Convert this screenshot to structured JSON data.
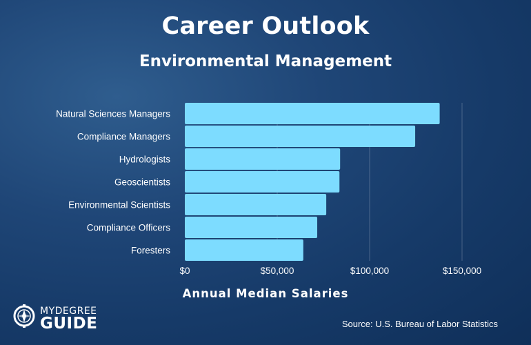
{
  "header": {
    "title": "Career Outlook",
    "subtitle": "Environmental Management"
  },
  "chart_data": {
    "type": "bar",
    "orientation": "horizontal",
    "categories": [
      "Natural Sciences Managers",
      "Compliance Managers",
      "Hydrologists",
      "Geoscientists",
      "Environmental Scientists",
      "Compliance Officers",
      "Foresters"
    ],
    "values": [
      137900,
      124650,
      84030,
      83680,
      76530,
      71650,
      64110
    ],
    "xlabel": "Annual Median Salaries",
    "ylabel": "",
    "xlim": [
      0,
      150000
    ],
    "xticks": [
      0,
      50000,
      100000,
      150000
    ],
    "xtick_labels": [
      "$0",
      "$50,000",
      "$100,000",
      "$150,000"
    ],
    "grid": "vertical",
    "bar_color": "#7ddcff"
  },
  "footer": {
    "source": "Source: U.S. Bureau of Labor Statistics",
    "logo_top": "MYDEGREE",
    "logo_bottom": "GUIDE"
  },
  "colors": {
    "background": "#1f4677",
    "bar": "#7ddcff",
    "text": "#ffffff"
  }
}
